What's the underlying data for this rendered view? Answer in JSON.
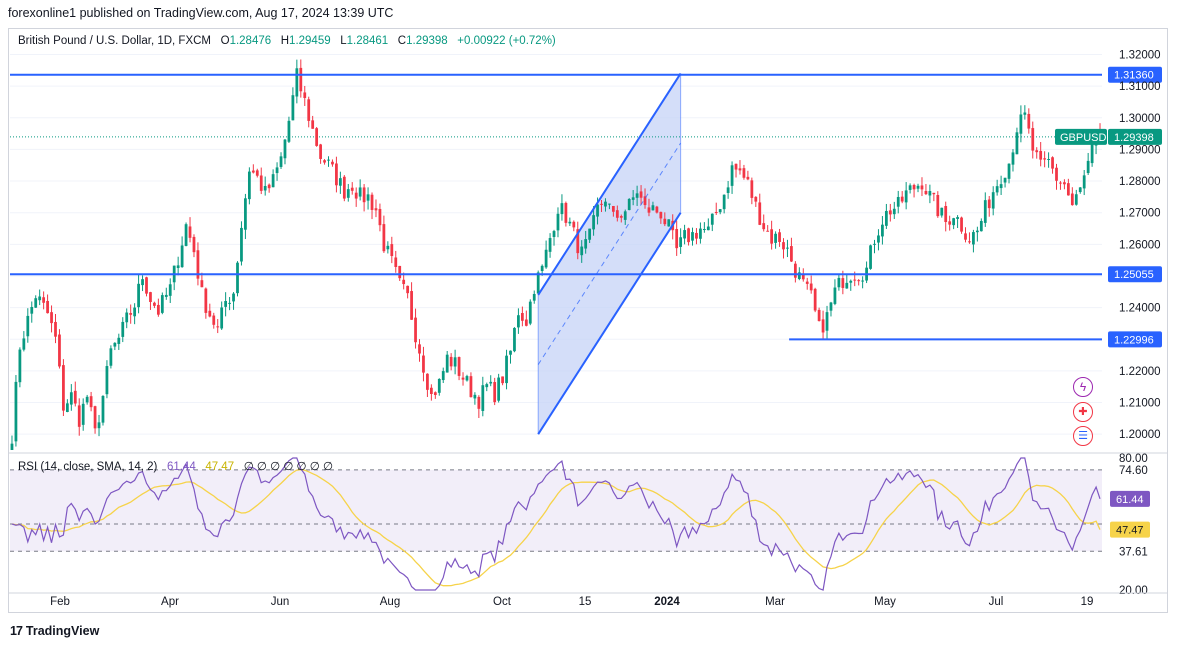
{
  "header": {
    "published": "forexonline1 published on TradingView.com, Aug 17, 2024 13:39 UTC"
  },
  "legend": {
    "symbol": "British Pound / U.S. Dollar, 1D, FXCM",
    "open_label": "O",
    "open": "1.28476",
    "high_label": "H",
    "high": "1.29459",
    "low_label": "L",
    "low": "1.28461",
    "close_label": "C",
    "close": "1.29398",
    "change": "+0.00922 (+0.72%)"
  },
  "rsi_legend": {
    "label": "RSI (14, close, SMA, 14, 2)",
    "rsi_value": "61.44",
    "sma_value": "47.47",
    "extras": "∅ ∅ ∅ ∅ ∅ ∅ ∅"
  },
  "footer": {
    "brand": "TradingView",
    "logo": "17"
  },
  "colors": {
    "up": "#089981",
    "down": "#f23645",
    "line": "#2962ff",
    "channel_fill": "#c5d3f7",
    "rsi": "#7e57c2",
    "rsi_sma": "#f6d34a",
    "rsi_band": "#ede7f6",
    "symbol_badge": "#089981"
  },
  "chart_data": [
    {
      "type": "candlestick",
      "title": "British Pound / U.S. Dollar, 1D, FXCM",
      "symbol": "GBPUSD",
      "ylim": [
        1.195,
        1.323
      ],
      "y_ticks": [
        "1.32000",
        "1.31000",
        "1.30000",
        "1.29000",
        "1.28000",
        "1.27000",
        "1.26000",
        "1.25000",
        "1.24000",
        "1.23000",
        "1.22000",
        "1.21000",
        "1.20000"
      ],
      "x_ticks": [
        "Feb",
        "Apr",
        "Jun",
        "Aug",
        "Oct",
        "15",
        "2024",
        "Mar",
        "May",
        "Jul",
        "19"
      ],
      "price_path": [
        [
          0,
          1.2
        ],
        [
          2,
          1.228
        ],
        [
          4,
          1.236
        ],
        [
          6,
          1.244
        ],
        [
          9,
          1.238
        ],
        [
          11,
          1.23
        ],
        [
          13,
          1.209
        ],
        [
          15,
          1.212
        ],
        [
          17,
          1.205
        ],
        [
          19,
          1.212
        ],
        [
          21,
          1.2
        ],
        [
          23,
          1.212
        ],
        [
          25,
          1.226
        ],
        [
          27,
          1.23
        ],
        [
          29,
          1.236
        ],
        [
          31,
          1.241
        ],
        [
          33,
          1.25
        ],
        [
          35,
          1.243
        ],
        [
          37,
          1.239
        ],
        [
          40,
          1.246
        ],
        [
          42,
          1.256
        ],
        [
          44,
          1.266
        ],
        [
          46,
          1.258
        ],
        [
          48,
          1.244
        ],
        [
          50,
          1.238
        ],
        [
          52,
          1.233
        ],
        [
          54,
          1.242
        ],
        [
          56,
          1.245
        ],
        [
          58,
          1.266
        ],
        [
          60,
          1.284
        ],
        [
          62,
          1.281
        ],
        [
          64,
          1.276
        ],
        [
          66,
          1.28
        ],
        [
          68,
          1.287
        ],
        [
          70,
          1.299
        ],
        [
          72,
          1.313
        ],
        [
          74,
          1.305
        ],
        [
          76,
          1.296
        ],
        [
          78,
          1.288
        ],
        [
          80,
          1.285
        ],
        [
          82,
          1.281
        ],
        [
          84,
          1.277
        ],
        [
          86,
          1.279
        ],
        [
          88,
          1.275
        ],
        [
          90,
          1.275
        ],
        [
          92,
          1.271
        ],
        [
          94,
          1.26
        ],
        [
          96,
          1.254
        ],
        [
          98,
          1.247
        ],
        [
          100,
          1.243
        ],
        [
          102,
          1.232
        ],
        [
          104,
          1.222
        ],
        [
          106,
          1.212
        ],
        [
          108,
          1.216
        ],
        [
          110,
          1.224
        ],
        [
          112,
          1.222
        ],
        [
          114,
          1.218
        ],
        [
          116,
          1.214
        ],
        [
          118,
          1.211
        ],
        [
          120,
          1.215
        ],
        [
          122,
          1.213
        ],
        [
          124,
          1.218
        ],
        [
          126,
          1.226
        ],
        [
          128,
          1.239
        ],
        [
          130,
          1.236
        ],
        [
          132,
          1.247
        ],
        [
          134,
          1.252
        ],
        [
          136,
          1.262
        ],
        [
          138,
          1.272
        ],
        [
          140,
          1.269
        ],
        [
          142,
          1.263
        ],
        [
          144,
          1.257
        ],
        [
          146,
          1.262
        ],
        [
          148,
          1.271
        ],
        [
          150,
          1.275
        ],
        [
          152,
          1.268
        ],
        [
          154,
          1.27
        ],
        [
          156,
          1.272
        ],
        [
          158,
          1.277
        ],
        [
          160,
          1.271
        ],
        [
          162,
          1.271
        ],
        [
          164,
          1.27
        ],
        [
          166,
          1.265
        ],
        [
          168,
          1.258
        ],
        [
          170,
          1.262
        ],
        [
          172,
          1.263
        ],
        [
          174,
          1.265
        ],
        [
          176,
          1.264
        ],
        [
          178,
          1.27
        ],
        [
          180,
          1.276
        ],
        [
          182,
          1.284
        ],
        [
          184,
          1.283
        ],
        [
          186,
          1.279
        ],
        [
          188,
          1.272
        ],
        [
          190,
          1.266
        ],
        [
          192,
          1.262
        ],
        [
          194,
          1.262
        ],
        [
          196,
          1.258
        ],
        [
          198,
          1.252
        ],
        [
          200,
          1.247
        ],
        [
          202,
          1.243
        ],
        [
          204,
          1.233
        ],
        [
          206,
          1.237
        ],
        [
          208,
          1.245
        ],
        [
          210,
          1.249
        ],
        [
          212,
          1.251
        ],
        [
          214,
          1.251
        ],
        [
          216,
          1.252
        ],
        [
          218,
          1.262
        ],
        [
          220,
          1.268
        ],
        [
          222,
          1.271
        ],
        [
          224,
          1.272
        ],
        [
          226,
          1.276
        ],
        [
          228,
          1.278
        ],
        [
          230,
          1.28
        ],
        [
          232,
          1.275
        ],
        [
          234,
          1.271
        ],
        [
          236,
          1.267
        ],
        [
          238,
          1.27
        ],
        [
          240,
          1.266
        ],
        [
          242,
          1.262
        ],
        [
          244,
          1.264
        ],
        [
          246,
          1.271
        ],
        [
          248,
          1.277
        ],
        [
          250,
          1.282
        ],
        [
          252,
          1.286
        ],
        [
          254,
          1.297
        ],
        [
          256,
          1.3
        ],
        [
          258,
          1.29
        ],
        [
          260,
          1.284
        ],
        [
          262,
          1.286
        ],
        [
          264,
          1.281
        ],
        [
          266,
          1.279
        ],
        [
          268,
          1.272
        ],
        [
          270,
          1.277
        ],
        [
          272,
          1.285
        ],
        [
          274,
          1.294
        ]
      ],
      "horizontal_levels": [
        {
          "value": 1.3136,
          "label": "1.31360"
        },
        {
          "value": 1.25055,
          "label": "1.25055"
        },
        {
          "value": 1.22996,
          "label": "1.22996"
        }
      ],
      "current_price": {
        "value": 1.29398,
        "label": "1.29398",
        "symbol": "GBPUSD"
      },
      "channel": {
        "start_index": 133,
        "end_index": 169,
        "lower_start": 1.2,
        "lower_end": 1.27,
        "width": 0.044
      },
      "annotations": [
        "trend channel",
        "horizontal support/resistance levels"
      ]
    },
    {
      "type": "line",
      "title": "RSI (14, close, SMA, 14, 2)",
      "ylim": [
        20,
        80
      ],
      "y_ticks": [
        "80.00",
        "74.60",
        "37.61",
        "20.00"
      ],
      "band": [
        37.61,
        74.6
      ],
      "series": [
        {
          "name": "RSI",
          "current": 61.44
        },
        {
          "name": "RSI SMA",
          "current": 47.47
        }
      ],
      "rsi_label": "61.44",
      "sma_label": "47.47"
    }
  ]
}
